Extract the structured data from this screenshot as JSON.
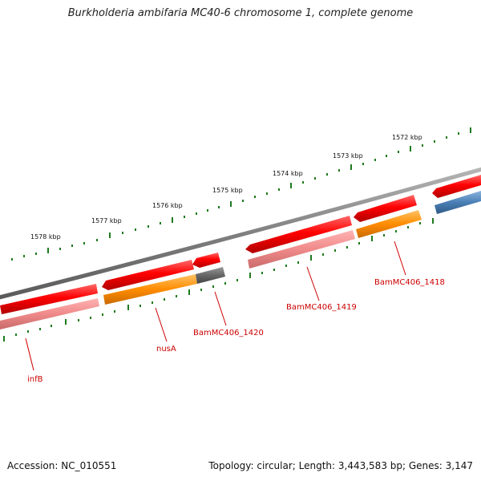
{
  "title": "Burkholderia ambifaria MC40-6 chromosome 1, complete genome",
  "footer": {
    "accession": "Accession: NC_010551",
    "summary": "Topology: circular; Length: 3,443,583 bp; Genes: 3,147"
  },
  "colors": {
    "backbone": "#808080",
    "cds_forward_red": "#ee0000",
    "cds_light_red": "#ee8a8a",
    "rna_orange": "#ff8c00",
    "gene_gray": "#666666",
    "gene_blue": "#4a7fb5",
    "tick_green": "#1f7a1f",
    "label_red": "#cc0000"
  },
  "scale_labels": [
    "1578 kbp",
    "1577 kbp",
    "1576 kbp",
    "1575 kbp",
    "1574 kbp",
    "1573 kbp",
    "1572 kbp"
  ],
  "gene_labels": [
    "infB",
    "nusA",
    "BamMC406_1420",
    "BamMC406_1419",
    "BamMC406_1418"
  ]
}
